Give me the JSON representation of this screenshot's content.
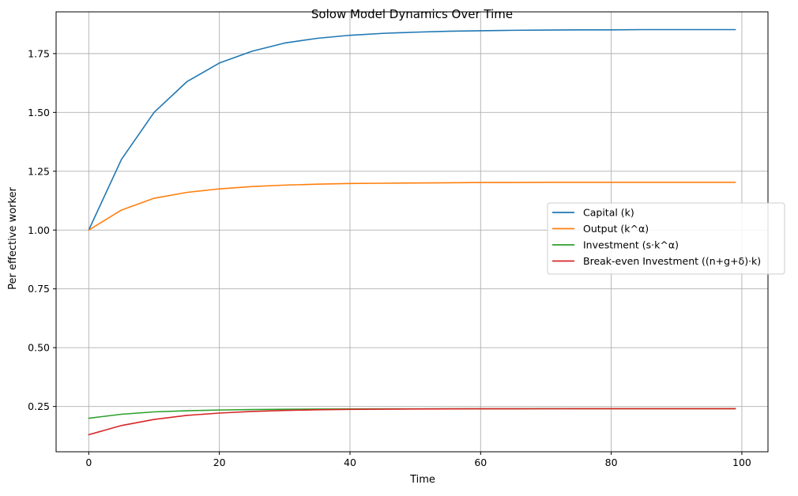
{
  "chart_data": {
    "type": "line",
    "title": "Solow Model Dynamics Over Time",
    "xlabel": "Time",
    "ylabel": "Per effective worker",
    "xlim": [
      -5,
      104
    ],
    "ylim": [
      0.0575,
      1.9275
    ],
    "xticks": [
      0,
      20,
      40,
      60,
      80,
      100
    ],
    "yticks": [
      0.25,
      0.5,
      0.75,
      1.0,
      1.25,
      1.5,
      1.75
    ],
    "xtick_labels": [
      "0",
      "20",
      "40",
      "60",
      "80",
      "100"
    ],
    "ytick_labels": [
      "0.25",
      "0.50",
      "0.75",
      "1.00",
      "1.25",
      "1.50",
      "1.75"
    ],
    "grid": true,
    "legend_position": "center-right",
    "x": [
      0,
      5,
      10,
      15,
      20,
      25,
      30,
      35,
      40,
      45,
      50,
      55,
      60,
      65,
      70,
      75,
      80,
      85,
      90,
      95,
      99
    ],
    "series": [
      {
        "name": "Capital (k)",
        "color": "#1f77b4",
        "values": [
          1.0,
          1.3,
          1.5,
          1.63,
          1.71,
          1.76,
          1.795,
          1.815,
          1.828,
          1.836,
          1.841,
          1.845,
          1.847,
          1.849,
          1.85,
          1.851,
          1.851,
          1.852,
          1.852,
          1.852,
          1.852
        ]
      },
      {
        "name": "Output (k^α)",
        "color": "#ff7f0e",
        "values": [
          1.0,
          1.085,
          1.135,
          1.16,
          1.175,
          1.185,
          1.191,
          1.195,
          1.198,
          1.199,
          1.2,
          1.201,
          1.202,
          1.202,
          1.203,
          1.203,
          1.203,
          1.203,
          1.203,
          1.203,
          1.203
        ]
      },
      {
        "name": "Investment (s·k^α)",
        "color": "#2ca02c",
        "values": [
          0.2,
          0.217,
          0.227,
          0.232,
          0.235,
          0.237,
          0.2382,
          0.239,
          0.2396,
          0.2398,
          0.24,
          0.2402,
          0.2404,
          0.2404,
          0.2406,
          0.2406,
          0.2406,
          0.2406,
          0.2406,
          0.2406,
          0.2406
        ]
      },
      {
        "name": "Break-even Investment ((n+g+δ)·k)",
        "color": "#d62728",
        "values": [
          0.13,
          0.169,
          0.195,
          0.212,
          0.222,
          0.229,
          0.233,
          0.236,
          0.2376,
          0.2387,
          0.2393,
          0.2398,
          0.2401,
          0.2403,
          0.2405,
          0.2406,
          0.2406,
          0.2407,
          0.2407,
          0.2407,
          0.2407
        ]
      }
    ]
  }
}
